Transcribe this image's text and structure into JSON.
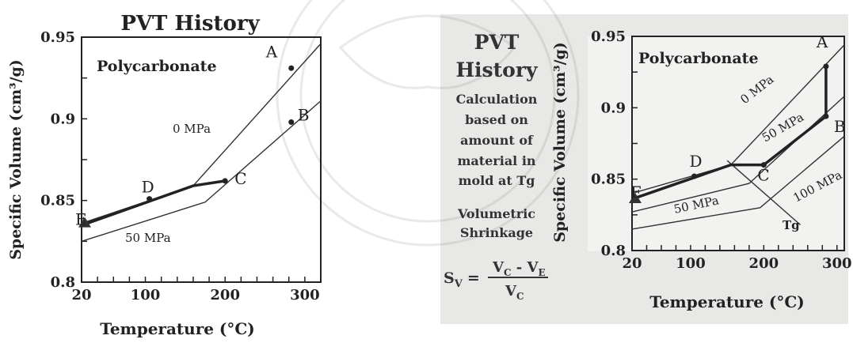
{
  "chart_data": [
    {
      "type": "line",
      "title": "PVT History",
      "subtitle": "Polycarbonate",
      "xlabel": "Temperature (°C)",
      "ylabel": "Specific Volume (cm³/g)",
      "xlim": [
        20,
        320
      ],
      "ylim": [
        0.8,
        0.95
      ],
      "xticks": [
        "20",
        "100",
        "200",
        "300"
      ],
      "yticks": [
        "0.8",
        "0.85",
        "0.9",
        "0.95"
      ],
      "series": [
        {
          "name": "0 MPa",
          "x": [
            20,
            160,
            320
          ],
          "y": [
            0.836,
            0.859,
            0.946
          ]
        },
        {
          "name": "50 MPa",
          "x": [
            20,
            175,
            320
          ],
          "y": [
            0.825,
            0.849,
            0.911
          ]
        }
      ],
      "history_path": {
        "x": [
          27,
          160,
          200
        ],
        "y": [
          0.836,
          0.859,
          0.862
        ]
      },
      "points": [
        {
          "label": "A",
          "x": 283,
          "y": 0.931
        },
        {
          "label": "B",
          "x": 283,
          "y": 0.898
        },
        {
          "label": "C",
          "x": 200,
          "y": 0.862
        },
        {
          "label": "D",
          "x": 105,
          "y": 0.851
        },
        {
          "label": "E",
          "x": 20,
          "y": 0.836
        }
      ],
      "grid": false
    },
    {
      "type": "line",
      "title": "PVT History",
      "subtitle": "Polycarbonate",
      "xlabel": "Temperature (°C)",
      "ylabel": "Specific Volume (cm³/g)",
      "xlim": [
        20,
        310
      ],
      "ylim": [
        0.8,
        0.95
      ],
      "xticks": [
        "20",
        "100",
        "200",
        "300"
      ],
      "yticks": [
        "0.8",
        "0.85",
        "0.9",
        "0.95"
      ],
      "series": [
        {
          "name": "0 MPa",
          "x": [
            20,
            155,
            310
          ],
          "y": [
            0.84,
            0.86,
            0.944
          ]
        },
        {
          "name": "50 MPa",
          "x": [
            20,
            180,
            310
          ],
          "y": [
            0.827,
            0.847,
            0.908
          ]
        },
        {
          "name": "100 MPa",
          "x": [
            20,
            195,
            310
          ],
          "y": [
            0.815,
            0.83,
            0.88
          ]
        },
        {
          "name": "Tg",
          "x": [
            150,
            250
          ],
          "y": [
            0.863,
            0.818
          ]
        }
      ],
      "history_path": {
        "x": [
          20,
          155,
          200,
          285,
          285
        ],
        "y": [
          0.836,
          0.86,
          0.86,
          0.894,
          0.929
        ]
      },
      "points": [
        {
          "label": "A",
          "x": 285,
          "y": 0.929
        },
        {
          "label": "B",
          "x": 285,
          "y": 0.894
        },
        {
          "label": "C",
          "x": 200,
          "y": 0.86
        },
        {
          "label": "D",
          "x": 105,
          "y": 0.852
        },
        {
          "label": "E",
          "x": 20,
          "y": 0.836
        }
      ],
      "side_text": {
        "title_lines": [
          "PVT",
          "History"
        ],
        "calc_lines": [
          "Calculation",
          "based on",
          "amount of",
          "material in",
          "mold at Tg"
        ],
        "shrink_lines": [
          "Volumetric",
          "Shrinkage"
        ],
        "formula_lhs": "S",
        "formula_sub": "V",
        "formula_eq": "=",
        "formula_num": "V",
        "formula_num_sub": "C",
        "formula_minus": " - V",
        "formula_num_sub2": "E",
        "formula_den": "V",
        "formula_den_sub": "C"
      },
      "grid": false
    }
  ]
}
